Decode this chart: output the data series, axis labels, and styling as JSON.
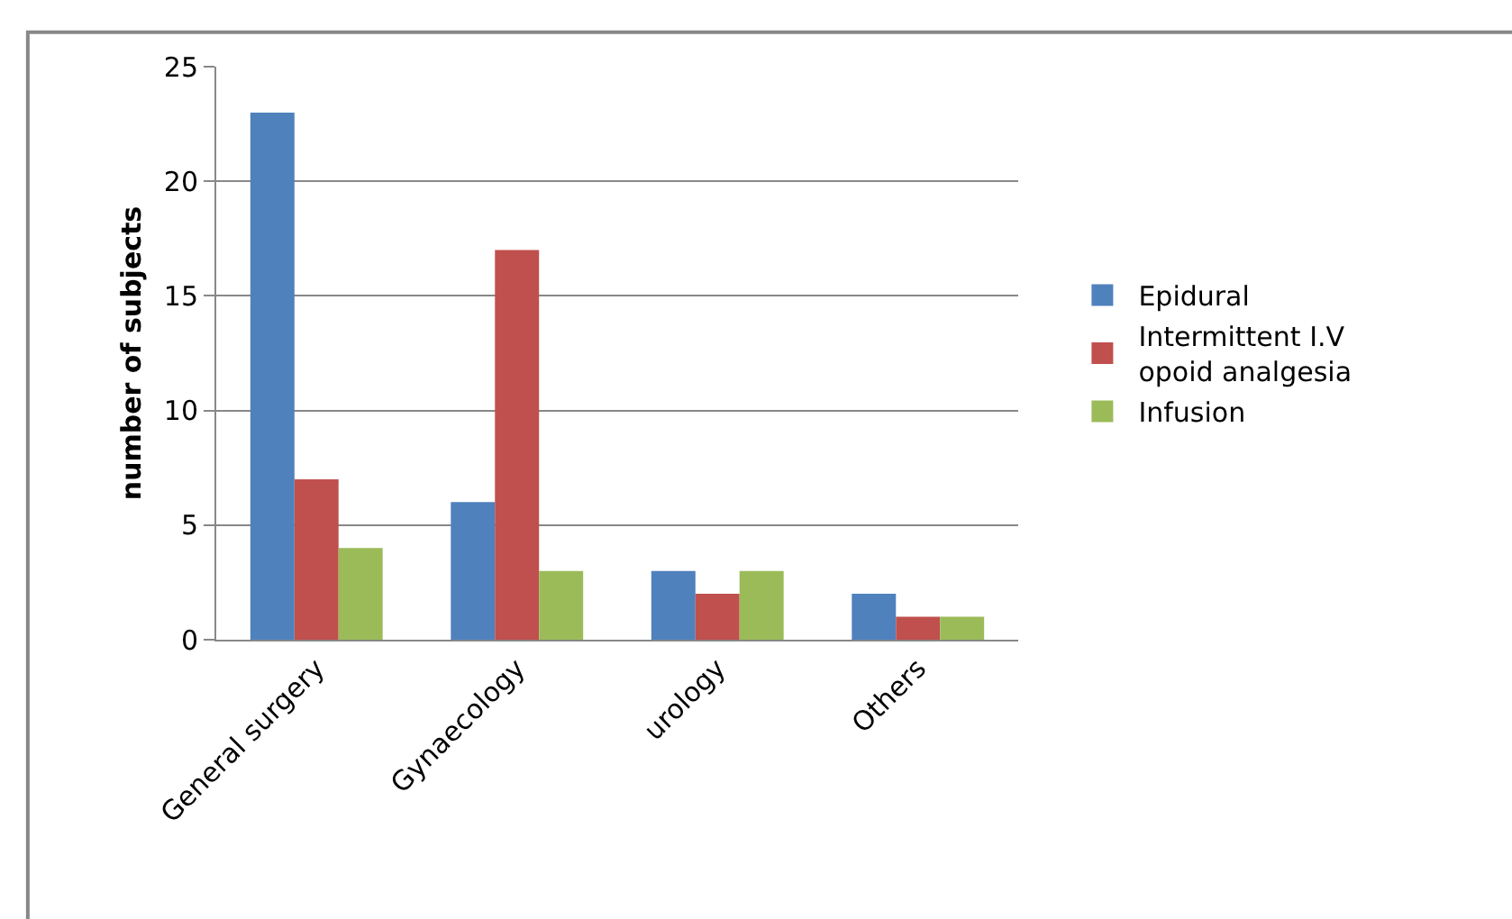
{
  "chart_data": {
    "type": "bar",
    "ylabel": "number of subjects",
    "categories": [
      "General surgery",
      "Gynaecology",
      "urology",
      "Others"
    ],
    "series": [
      {
        "name": "Epidural",
        "color": "#4f81bd",
        "values": [
          23,
          6,
          3,
          2
        ]
      },
      {
        "name": "Intermittent I.V opoid analgesia",
        "color": "#c0504d",
        "values": [
          7,
          17,
          2,
          1
        ]
      },
      {
        "name": "Infusion",
        "color": "#9bbb59",
        "values": [
          4,
          3,
          3,
          1
        ]
      }
    ],
    "ylim": [
      0,
      25
    ],
    "yticks": [
      0,
      5,
      10,
      15,
      20,
      25
    ],
    "grid": "y",
    "legend": "right"
  }
}
